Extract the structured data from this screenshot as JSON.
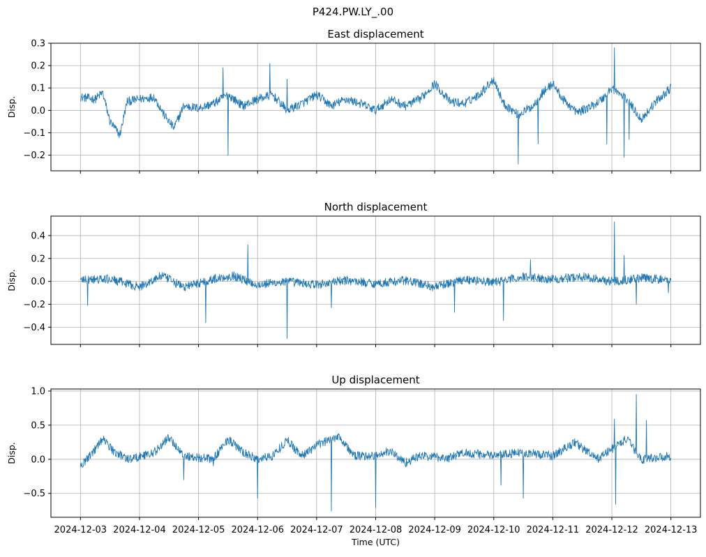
{
  "figure": {
    "suptitle": "P424.PW.LY_.00"
  },
  "chart_data": [
    {
      "type": "line",
      "title": "East displacement",
      "ylabel": "Disp.",
      "xlabel": "",
      "ylim": [
        -0.27,
        0.3
      ],
      "yticks": [
        -0.2,
        -0.1,
        0.0,
        0.1,
        0.2,
        0.3
      ],
      "ytick_labels": [
        "−0.2",
        "−0.1",
        "0.0",
        "0.1",
        "0.2",
        "0.3"
      ],
      "xlim": [
        "2024-12-02T12:00",
        "2024-12-13T12:00"
      ],
      "grid": true,
      "series": [
        {
          "color": "#1f77b4",
          "baseline": [
            [
              "2024-12-03T00:00",
              0.06
            ],
            [
              "2024-12-03T06:00",
              0.05
            ],
            [
              "2024-12-03T09:00",
              0.08
            ],
            [
              "2024-12-03T12:00",
              -0.05
            ],
            [
              "2024-12-03T16:00",
              -0.11
            ],
            [
              "2024-12-03T19:00",
              0.04
            ],
            [
              "2024-12-04T00:00",
              0.05
            ],
            [
              "2024-12-04T06:00",
              0.06
            ],
            [
              "2024-12-04T10:00",
              -0.02
            ],
            [
              "2024-12-04T14:00",
              -0.08
            ],
            [
              "2024-12-04T18:00",
              0.02
            ],
            [
              "2024-12-05T00:00",
              0.01
            ],
            [
              "2024-12-05T06:00",
              0.03
            ],
            [
              "2024-12-05T12:00",
              0.07
            ],
            [
              "2024-12-05T18:00",
              0.02
            ],
            [
              "2024-12-06T00:00",
              0.05
            ],
            [
              "2024-12-06T06:00",
              0.07
            ],
            [
              "2024-12-06T12:00",
              0.0
            ],
            [
              "2024-12-06T18:00",
              0.03
            ],
            [
              "2024-12-07T00:00",
              0.07
            ],
            [
              "2024-12-07T06:00",
              0.02
            ],
            [
              "2024-12-07T12:00",
              0.05
            ],
            [
              "2024-12-07T18:00",
              0.03
            ],
            [
              "2024-12-08T00:00",
              0.0
            ],
            [
              "2024-12-08T06:00",
              0.05
            ],
            [
              "2024-12-08T12:00",
              0.02
            ],
            [
              "2024-12-08T18:00",
              0.05
            ],
            [
              "2024-12-09T00:00",
              0.12
            ],
            [
              "2024-12-09T06:00",
              0.04
            ],
            [
              "2024-12-09T12:00",
              0.03
            ],
            [
              "2024-12-09T18:00",
              0.07
            ],
            [
              "2024-12-10T00:00",
              0.14
            ],
            [
              "2024-12-10T04:00",
              0.03
            ],
            [
              "2024-12-10T10:00",
              -0.02
            ],
            [
              "2024-12-10T16:00",
              0.02
            ],
            [
              "2024-12-10T20:00",
              0.08
            ],
            [
              "2024-12-11T00:00",
              0.12
            ],
            [
              "2024-12-11T04:00",
              0.05
            ],
            [
              "2024-12-11T10:00",
              -0.01
            ],
            [
              "2024-12-11T16:00",
              0.02
            ],
            [
              "2024-12-11T20:00",
              0.05
            ],
            [
              "2024-12-12T00:00",
              0.1
            ],
            [
              "2024-12-12T06:00",
              0.05
            ],
            [
              "2024-12-12T12:00",
              -0.04
            ],
            [
              "2024-12-12T18:00",
              0.04
            ],
            [
              "2024-12-13T00:00",
              0.1
            ]
          ],
          "spikes": [
            [
              "2024-12-05T10:00",
              0.19
            ],
            [
              "2024-12-05T12:00",
              -0.2
            ],
            [
              "2024-12-06T05:00",
              0.21
            ],
            [
              "2024-12-06T12:00",
              0.14
            ],
            [
              "2024-12-10T10:00",
              -0.24
            ],
            [
              "2024-12-10T18:00",
              -0.15
            ],
            [
              "2024-12-11T22:00",
              -0.15
            ],
            [
              "2024-12-12T01:00",
              0.28
            ],
            [
              "2024-12-12T05:00",
              -0.21
            ],
            [
              "2024-12-12T07:00",
              -0.13
            ]
          ]
        }
      ]
    },
    {
      "type": "line",
      "title": "North displacement",
      "ylabel": "Disp.",
      "xlabel": "",
      "ylim": [
        -0.55,
        0.57
      ],
      "yticks": [
        -0.4,
        -0.2,
        0.0,
        0.2,
        0.4
      ],
      "ytick_labels": [
        "−0.4",
        "−0.2",
        "0.0",
        "0.2",
        "0.4"
      ],
      "xlim": [
        "2024-12-02T12:00",
        "2024-12-13T12:00"
      ],
      "grid": true,
      "series": [
        {
          "color": "#1f77b4",
          "baseline": [
            [
              "2024-12-03T00:00",
              0.01
            ],
            [
              "2024-12-03T12:00",
              0.02
            ],
            [
              "2024-12-04T00:00",
              -0.05
            ],
            [
              "2024-12-04T09:00",
              0.05
            ],
            [
              "2024-12-04T18:00",
              -0.05
            ],
            [
              "2024-12-05T06:00",
              0.02
            ],
            [
              "2024-12-05T14:00",
              0.05
            ],
            [
              "2024-12-06T00:00",
              -0.03
            ],
            [
              "2024-12-06T12:00",
              0.0
            ],
            [
              "2024-12-07T00:00",
              -0.03
            ],
            [
              "2024-12-07T12:00",
              0.01
            ],
            [
              "2024-12-08T00:00",
              -0.02
            ],
            [
              "2024-12-08T12:00",
              0.01
            ],
            [
              "2024-12-09T00:00",
              -0.05
            ],
            [
              "2024-12-09T12:00",
              0.02
            ],
            [
              "2024-12-10T00:00",
              -0.01
            ],
            [
              "2024-12-10T12:00",
              0.04
            ],
            [
              "2024-12-11T00:00",
              0.02
            ],
            [
              "2024-12-11T12:00",
              0.04
            ],
            [
              "2024-12-12T00:00",
              0.0
            ],
            [
              "2024-12-12T12:00",
              0.03
            ],
            [
              "2024-12-13T00:00",
              0.01
            ]
          ],
          "spikes": [
            [
              "2024-12-03T03:00",
              -0.21
            ],
            [
              "2024-12-05T03:00",
              -0.36
            ],
            [
              "2024-12-05T20:00",
              0.32
            ],
            [
              "2024-12-06T12:00",
              -0.5
            ],
            [
              "2024-12-07T06:00",
              -0.23
            ],
            [
              "2024-12-09T08:00",
              -0.27
            ],
            [
              "2024-12-10T04:00",
              -0.34
            ],
            [
              "2024-12-10T15:00",
              0.19
            ],
            [
              "2024-12-12T01:00",
              0.52
            ],
            [
              "2024-12-12T05:00",
              0.23
            ],
            [
              "2024-12-12T10:00",
              -0.2
            ],
            [
              "2024-12-12T23:00",
              -0.1
            ]
          ]
        }
      ]
    },
    {
      "type": "line",
      "title": "Up displacement",
      "ylabel": "Disp.",
      "xlabel": "Time (UTC)",
      "ylim": [
        -0.85,
        1.03
      ],
      "yticks": [
        -0.5,
        0.0,
        0.5,
        1.0
      ],
      "ytick_labels": [
        "−0.5",
        "0.0",
        "0.5",
        "1.0"
      ],
      "xlim": [
        "2024-12-02T12:00",
        "2024-12-13T12:00"
      ],
      "xticks": [
        "2024-12-03",
        "2024-12-04",
        "2024-12-05",
        "2024-12-06",
        "2024-12-07",
        "2024-12-08",
        "2024-12-09",
        "2024-12-10",
        "2024-12-11",
        "2024-12-12",
        "2024-12-13"
      ],
      "grid": true,
      "series": [
        {
          "color": "#1f77b4",
          "baseline": [
            [
              "2024-12-03T00:00",
              -0.1
            ],
            [
              "2024-12-03T06:00",
              0.15
            ],
            [
              "2024-12-03T09:00",
              0.3
            ],
            [
              "2024-12-03T14:00",
              0.1
            ],
            [
              "2024-12-03T20:00",
              0.0
            ],
            [
              "2024-12-04T06:00",
              0.1
            ],
            [
              "2024-12-04T12:00",
              0.32
            ],
            [
              "2024-12-04T18:00",
              0.05
            ],
            [
              "2024-12-05T06:00",
              0.0
            ],
            [
              "2024-12-05T12:00",
              0.3
            ],
            [
              "2024-12-05T18:00",
              0.1
            ],
            [
              "2024-12-06T00:00",
              0.0
            ],
            [
              "2024-12-06T06:00",
              0.05
            ],
            [
              "2024-12-06T12:00",
              0.28
            ],
            [
              "2024-12-06T18:00",
              0.05
            ],
            [
              "2024-12-07T00:00",
              0.2
            ],
            [
              "2024-12-07T09:00",
              0.35
            ],
            [
              "2024-12-07T15:00",
              0.05
            ],
            [
              "2024-12-08T00:00",
              0.05
            ],
            [
              "2024-12-08T06:00",
              0.12
            ],
            [
              "2024-12-08T12:00",
              -0.05
            ],
            [
              "2024-12-08T18:00",
              0.05
            ],
            [
              "2024-12-09T06:00",
              0.02
            ],
            [
              "2024-12-09T12:00",
              0.1
            ],
            [
              "2024-12-10T00:00",
              0.05
            ],
            [
              "2024-12-10T12:00",
              0.1
            ],
            [
              "2024-12-11T00:00",
              0.05
            ],
            [
              "2024-12-11T09:00",
              0.25
            ],
            [
              "2024-12-11T18:00",
              0.0
            ],
            [
              "2024-12-12T06:00",
              0.3
            ],
            [
              "2024-12-12T12:00",
              0.0
            ],
            [
              "2024-12-13T00:00",
              0.05
            ]
          ],
          "spikes": [
            [
              "2024-12-04T18:00",
              -0.3
            ],
            [
              "2024-12-05T06:00",
              -0.1
            ],
            [
              "2024-12-06T00:00",
              -0.57
            ],
            [
              "2024-12-07T06:00",
              -0.76
            ],
            [
              "2024-12-08T00:00",
              -0.71
            ],
            [
              "2024-12-10T03:00",
              -0.38
            ],
            [
              "2024-12-10T12:00",
              -0.57
            ],
            [
              "2024-12-12T01:00",
              0.59
            ],
            [
              "2024-12-12T01:30",
              -0.66
            ],
            [
              "2024-12-12T10:00",
              0.95
            ],
            [
              "2024-12-12T14:00",
              0.57
            ]
          ]
        }
      ]
    }
  ]
}
